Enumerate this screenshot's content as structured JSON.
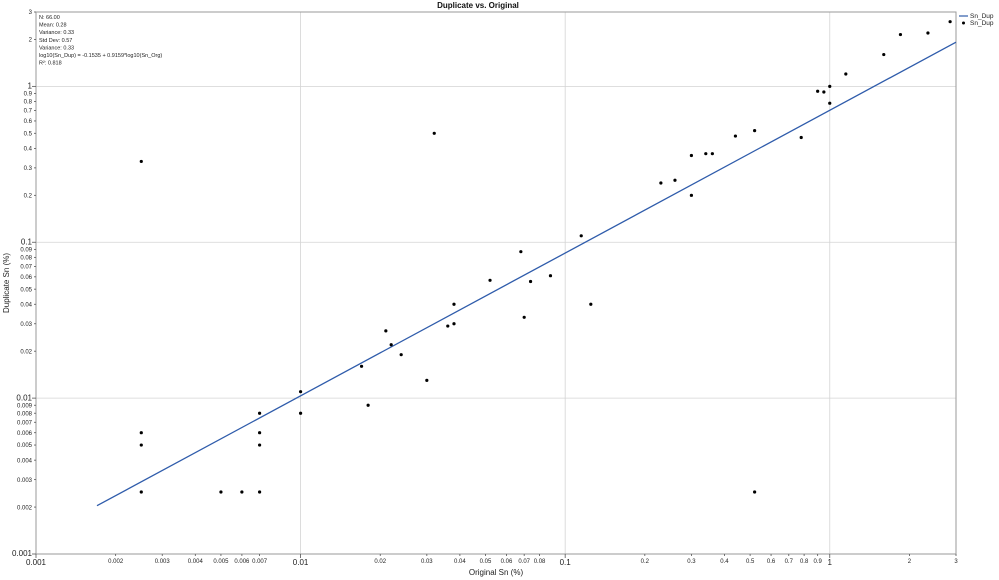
{
  "chart_data": {
    "type": "scatter",
    "title": "Duplicate vs. Original",
    "xlabel": "Original Sn (%)",
    "ylabel": "Duplicate Sn (%)",
    "x_scale": "log",
    "y_scale": "log",
    "xlim": [
      0.001,
      3
    ],
    "ylim": [
      0.001,
      3
    ],
    "grid": "major decades",
    "legend_position": "top-right",
    "x_ticks": [
      {
        "v": 0.001,
        "label": "0.001",
        "major": true
      },
      {
        "v": 0.002,
        "label": "0.002"
      },
      {
        "v": 0.003,
        "label": "0.003"
      },
      {
        "v": 0.004,
        "label": "0.004"
      },
      {
        "v": 0.005,
        "label": "0.005"
      },
      {
        "v": 0.006,
        "label": "0.006"
      },
      {
        "v": 0.007,
        "label": "0.007"
      },
      {
        "v": 0.01,
        "label": "0.01",
        "major": true
      },
      {
        "v": 0.02,
        "label": "0.02"
      },
      {
        "v": 0.03,
        "label": "0.03"
      },
      {
        "v": 0.04,
        "label": "0.04"
      },
      {
        "v": 0.05,
        "label": "0.05"
      },
      {
        "v": 0.06,
        "label": "0.06"
      },
      {
        "v": 0.07,
        "label": "0.07"
      },
      {
        "v": 0.08,
        "label": "0.08"
      },
      {
        "v": 0.1,
        "label": "0.1",
        "major": true
      },
      {
        "v": 0.2,
        "label": "0.2"
      },
      {
        "v": 0.3,
        "label": "0.3"
      },
      {
        "v": 0.4,
        "label": "0.4"
      },
      {
        "v": 0.5,
        "label": "0.5"
      },
      {
        "v": 0.6,
        "label": "0.6"
      },
      {
        "v": 0.7,
        "label": "0.7"
      },
      {
        "v": 0.8,
        "label": "0.8"
      },
      {
        "v": 0.9,
        "label": "0.9"
      },
      {
        "v": 1,
        "label": "1",
        "major": true
      },
      {
        "v": 2,
        "label": "2"
      },
      {
        "v": 3,
        "label": "3"
      }
    ],
    "y_ticks": [
      {
        "v": 0.001,
        "label": "0.001",
        "major": true
      },
      {
        "v": 0.002,
        "label": "0.002"
      },
      {
        "v": 0.003,
        "label": "0.003"
      },
      {
        "v": 0.004,
        "label": "0.004"
      },
      {
        "v": 0.005,
        "label": "0.005"
      },
      {
        "v": 0.006,
        "label": "0.006"
      },
      {
        "v": 0.007,
        "label": "0.007"
      },
      {
        "v": 0.008,
        "label": "0.008"
      },
      {
        "v": 0.009,
        "label": "0.009"
      },
      {
        "v": 0.01,
        "label": "0.01",
        "major": true
      },
      {
        "v": 0.02,
        "label": "0.02"
      },
      {
        "v": 0.03,
        "label": "0.03"
      },
      {
        "v": 0.04,
        "label": "0.04"
      },
      {
        "v": 0.05,
        "label": "0.05"
      },
      {
        "v": 0.06,
        "label": "0.06"
      },
      {
        "v": 0.07,
        "label": "0.07"
      },
      {
        "v": 0.08,
        "label": "0.08"
      },
      {
        "v": 0.09,
        "label": "0.09"
      },
      {
        "v": 0.1,
        "label": "0.1",
        "major": true
      },
      {
        "v": 0.2,
        "label": "0.2"
      },
      {
        "v": 0.3,
        "label": "0.3"
      },
      {
        "v": 0.4,
        "label": "0.4"
      },
      {
        "v": 0.5,
        "label": "0.5"
      },
      {
        "v": 0.6,
        "label": "0.6"
      },
      {
        "v": 0.7,
        "label": "0.7"
      },
      {
        "v": 0.8,
        "label": "0.8"
      },
      {
        "v": 0.9,
        "label": "0.9"
      },
      {
        "v": 1,
        "label": "1",
        "major": true
      },
      {
        "v": 2,
        "label": "2"
      },
      {
        "v": 3,
        "label": "3"
      }
    ],
    "series": [
      {
        "name": "Sn_Dup",
        "type": "scatter",
        "marker": "dot",
        "color": "#000000",
        "points": [
          [
            0.0025,
            0.33
          ],
          [
            0.0025,
            0.006
          ],
          [
            0.0025,
            0.005
          ],
          [
            0.0025,
            0.0025
          ],
          [
            0.005,
            0.0025
          ],
          [
            0.006,
            0.0025
          ],
          [
            0.007,
            0.0025
          ],
          [
            0.007,
            0.008
          ],
          [
            0.007,
            0.006
          ],
          [
            0.007,
            0.005
          ],
          [
            0.01,
            0.011
          ],
          [
            0.01,
            0.008
          ],
          [
            0.017,
            0.016
          ],
          [
            0.018,
            0.009
          ],
          [
            0.021,
            0.027
          ],
          [
            0.022,
            0.022
          ],
          [
            0.024,
            0.019
          ],
          [
            0.03,
            0.013
          ],
          [
            0.032,
            0.5
          ],
          [
            0.036,
            0.029
          ],
          [
            0.038,
            0.03
          ],
          [
            0.038,
            0.04
          ],
          [
            0.052,
            0.057
          ],
          [
            0.068,
            0.087
          ],
          [
            0.07,
            0.033
          ],
          [
            0.074,
            0.056
          ],
          [
            0.088,
            0.061
          ],
          [
            0.115,
            0.11
          ],
          [
            0.125,
            0.04
          ],
          [
            0.23,
            0.24
          ],
          [
            0.26,
            0.25
          ],
          [
            0.3,
            0.2
          ],
          [
            0.3,
            0.36
          ],
          [
            0.34,
            0.37
          ],
          [
            0.36,
            0.37
          ],
          [
            0.44,
            0.48
          ],
          [
            0.52,
            0.52
          ],
          [
            0.52,
            0.0025
          ],
          [
            0.78,
            0.47
          ],
          [
            0.9,
            0.93
          ],
          [
            0.95,
            0.92
          ],
          [
            1.0,
            1.0
          ],
          [
            1.0,
            0.78
          ],
          [
            1.15,
            1.2
          ],
          [
            1.6,
            1.6
          ],
          [
            1.85,
            2.15
          ],
          [
            2.35,
            2.2
          ],
          [
            2.85,
            2.6
          ]
        ]
      },
      {
        "name": "Sn_Dup",
        "type": "line",
        "color": "#2f5cab",
        "fit": "log10(Sn_Dup) = -0.1535 + 0.9159*log10(Sn_Org)",
        "x_range": [
          0.0017,
          3
        ]
      }
    ],
    "stats": [
      "N: 66.00",
      "Mean: 0.28",
      "Variance: 0.33",
      "Std Dev: 0.57",
      "Variance: 0.33",
      "log10(Sn_Dup) = -0.1535 + 0.9159*log10(Sn_Org)",
      "R²: 0.818"
    ]
  }
}
